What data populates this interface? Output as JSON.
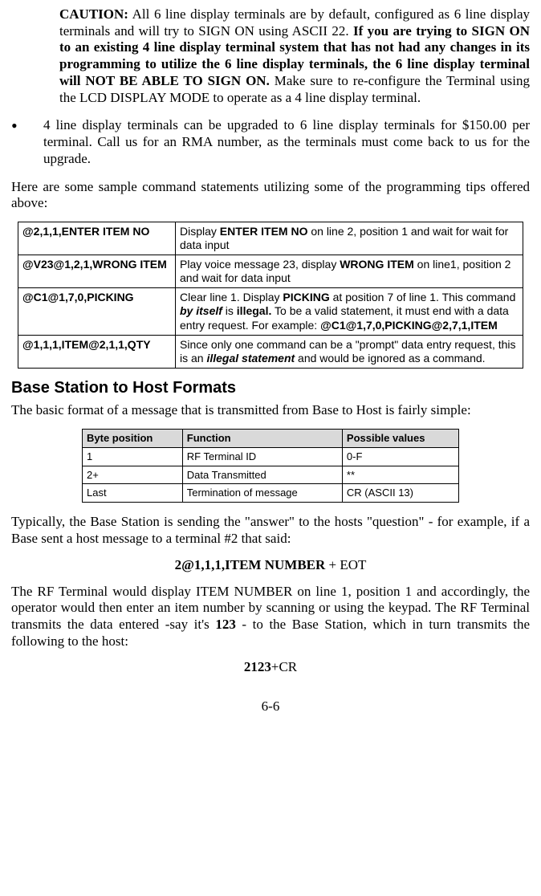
{
  "caution": {
    "label": "CAUTION:",
    "p1": " All 6 line display terminals are by default, configured as 6 line display terminals and will try to SIGN ON using ASCII 22. ",
    "bold1": "If you are trying to SIGN ON to an existing 4 line display terminal system that has not had any changes in its programming to utilize the 6 line display terminals, the 6 line display terminal will NOT BE ABLE TO SIGN ON.",
    "p2": "  Make sure to re-configure the Terminal using the LCD DISPLAY MODE to operate as a 4 line display terminal."
  },
  "bullet1": "4 line display terminals can be upgraded to 6 line display terminals for $150.00 per terminal. Call us for an RMA number, as the terminals must come back to us for the upgrade.",
  "intro_sample": "Here are some sample command statements utilizing some of the programming tips offered above:",
  "cmd_table": {
    "r1": {
      "cmd": "@2,1,1,ENTER ITEM NO",
      "d1": "Display ",
      "d2": "ENTER ITEM NO",
      "d3": " on line 2, position 1 and wait for wait for data input"
    },
    "r2": {
      "cmd": "@V23@1,2,1,WRONG ITEM",
      "d1": "Play voice message 23, display ",
      "d2": "WRONG ITEM",
      "d3": " on line1, position 2 and wait for data input"
    },
    "r3": {
      "cmd": "@C1@1,7,0,PICKING",
      "d1": "Clear line 1. Display ",
      "d2": "PICKING",
      "d3": " at position 7 of line 1. This command ",
      "d4": "by itself",
      "d5": " is ",
      "d6": "illegal.",
      "d7": " To be a valid statement, it must end with a data entry request. For example: ",
      "d8": "@C1@1,7,0,PICKING@2,7,1,ITEM"
    },
    "r4": {
      "cmd": "@1,1,1,ITEM@2,1,1,QTY",
      "d1": "Since only one command can be a \"prompt\" data entry request, this is an ",
      "d2": "illegal statement",
      "d3": " and would be ignored as a command."
    }
  },
  "section_heading": "Base Station to Host Formats",
  "basic_format": "The basic format of a message that is transmitted from Base to Host is fairly simple:",
  "bytes_table": {
    "h1": "Byte position",
    "h2": "Function",
    "h3": "Possible values",
    "r1c1": "1",
    "r1c2": "RF Terminal ID",
    "r1c3": "0-F",
    "r2c1": "2+",
    "r2c2": "Data Transmitted",
    "r2c3": "**",
    "r3c1": "Last",
    "r3c2": "Termination of message",
    "r3c3": "CR (ASCII 13)"
  },
  "typ_para": "Typically, the Base Station is sending the \"answer\" to the hosts \"question\" - for example, if a Base sent a host message to a terminal #2 that said:",
  "example1_bold": "2@1,1,1,ITEM NUMBER",
  "example1_tail": " + EOT",
  "rf_para_a": "The RF Terminal would display ITEM NUMBER on line 1, position 1 and accordingly, the operator would then enter an item number by scanning or using the keypad. The RF Terminal transmits the data entered -say it's ",
  "rf_para_bold": "123",
  "rf_para_b": " - to the Base Station, which in turn transmits the following to the host:",
  "example2_bold": "2123",
  "example2_tail": "+CR",
  "page_no": "6-6"
}
